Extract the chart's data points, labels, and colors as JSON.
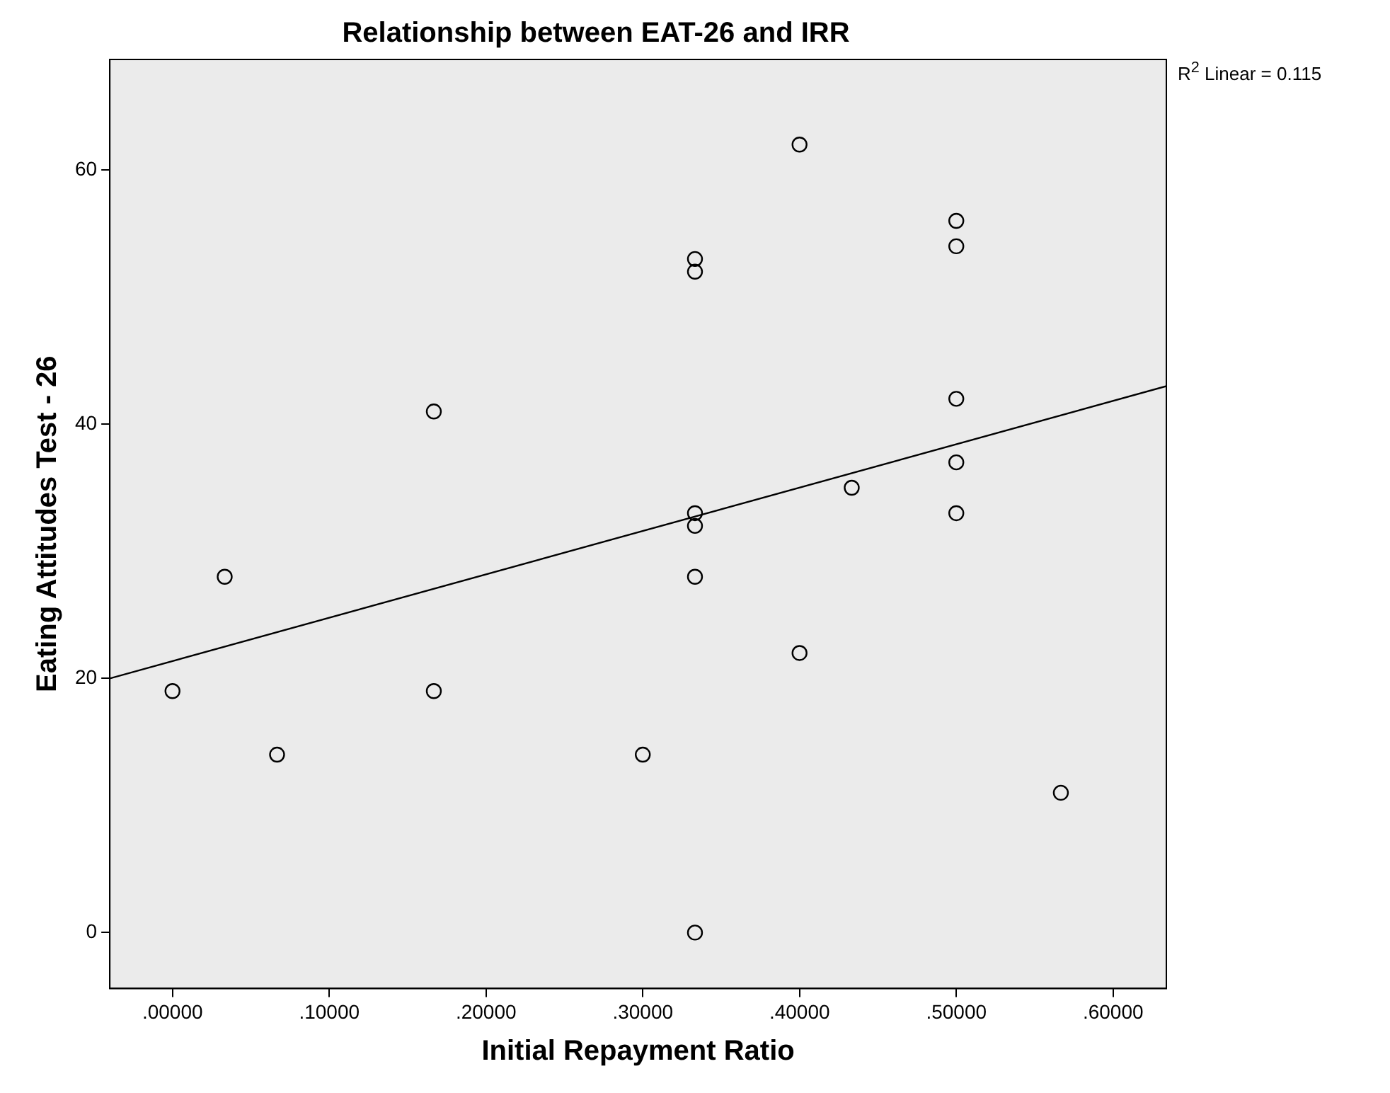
{
  "chart_data": {
    "type": "scatter",
    "title": "Relationship between EAT-26 and IRR",
    "xlabel": "Initial Repayment Ratio",
    "ylabel": "Eating Attitudes Test - 26",
    "series": [
      {
        "type": "scatter",
        "color": "#000000",
        "x": [
          0,
          0.0333,
          0.0667,
          0.1667,
          0.1667,
          0.3,
          0.3333,
          0.3333,
          0.3333,
          0.3333,
          0.3333,
          0.3333,
          0.4,
          0.4,
          0.4333,
          0.5,
          0.5,
          0.5,
          0.5,
          0.5,
          0.5667
        ],
        "values": [
          19,
          28,
          14,
          41,
          19,
          14,
          53,
          52,
          33,
          32,
          28,
          0,
          62,
          22,
          35,
          56,
          54,
          42,
          37,
          33,
          11
        ],
        "marker": "circle"
      },
      {
        "type": "line",
        "color": "#000000",
        "x": [
          -0.04,
          0.634
        ],
        "values": [
          20,
          43
        ],
        "marker": "none"
      }
    ],
    "xlim": [
      -0.04,
      0.634
    ],
    "ylim": [
      -4.4,
      68.7
    ],
    "xticks": [
      {
        "value": 0,
        "label": ".00000"
      },
      {
        "value": 0.1,
        "label": ".10000"
      },
      {
        "value": 0.2,
        "label": ".20000"
      },
      {
        "value": 0.3,
        "label": ".30000"
      },
      {
        "value": 0.4,
        "label": ".40000"
      },
      {
        "value": 0.5,
        "label": ".50000"
      },
      {
        "value": 0.6,
        "label": ".60000"
      }
    ],
    "yticks": [
      0,
      20,
      40,
      60
    ],
    "annotations": [
      "R$^{2}$ Linear = 0.115"
    ],
    "grid": false,
    "legend": false
  }
}
